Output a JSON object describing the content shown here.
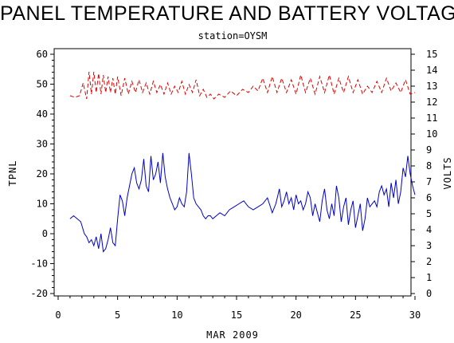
{
  "chart_data": {
    "type": "line",
    "title": "PANEL TEMPERATURE AND BATTERY VOLTAGE",
    "subtitle": "station=OYSM",
    "xlabel": "MAR 2009",
    "ylabel_left": "TPNL",
    "ylabel_right": "VOLTS",
    "xlim": [
      0,
      30
    ],
    "ylim_left": [
      -20,
      60
    ],
    "ylim_right": [
      0,
      15
    ],
    "x_ticks": [
      0,
      5,
      10,
      15,
      20,
      25,
      30
    ],
    "y_ticks_left": [
      -20,
      -10,
      0,
      10,
      20,
      30,
      40,
      50,
      60
    ],
    "y_ticks_right": [
      0,
      1,
      2,
      3,
      4,
      5,
      6,
      7,
      8,
      9,
      10,
      11,
      12,
      13,
      14,
      15
    ],
    "grid": false,
    "colors": {
      "panel_temperature": "#0000cc",
      "battery_voltage": "#dd0000"
    },
    "series": [
      {
        "axis": "left",
        "line_style": "solid",
        "x": [
          1.0,
          1.3,
          1.6,
          1.9,
          2.2,
          2.4,
          2.6,
          2.8,
          3.0,
          3.2,
          3.4,
          3.6,
          3.8,
          4.0,
          4.2,
          4.4,
          4.6,
          4.8,
          5.0,
          5.2,
          5.4,
          5.6,
          5.8,
          6.0,
          6.2,
          6.4,
          6.6,
          6.8,
          7.0,
          7.2,
          7.4,
          7.6,
          7.8,
          8.0,
          8.2,
          8.4,
          8.6,
          8.8,
          9.0,
          9.2,
          9.4,
          9.6,
          9.8,
          10.0,
          10.2,
          10.4,
          10.6,
          10.8,
          11.0,
          11.2,
          11.4,
          11.6,
          11.8,
          12.0,
          12.2,
          12.4,
          12.6,
          12.8,
          13.0,
          13.3,
          13.6,
          14.0,
          14.4,
          14.8,
          15.2,
          15.6,
          16.0,
          16.4,
          16.8,
          17.2,
          17.6,
          18.0,
          18.3,
          18.6,
          18.8,
          19.0,
          19.2,
          19.4,
          19.6,
          19.8,
          20.0,
          20.2,
          20.4,
          20.6,
          20.8,
          21.0,
          21.2,
          21.4,
          21.6,
          21.8,
          22.0,
          22.2,
          22.4,
          22.6,
          22.8,
          23.0,
          23.2,
          23.4,
          23.6,
          23.8,
          24.0,
          24.2,
          24.4,
          24.6,
          24.8,
          25.0,
          25.2,
          25.4,
          25.6,
          25.8,
          26.0,
          26.2,
          26.4,
          26.6,
          26.8,
          27.0,
          27.2,
          27.4,
          27.6,
          27.8,
          28.0,
          28.2,
          28.4,
          28.6,
          28.8,
          29.0,
          29.2,
          29.4,
          29.6,
          29.8,
          30.0
        ],
        "values": [
          5,
          6,
          5,
          4,
          0,
          -1,
          -3,
          -2,
          -4,
          -1,
          -5,
          0,
          -6,
          -5,
          -2,
          2,
          -3,
          -4,
          5,
          13,
          11,
          6,
          12,
          16,
          20,
          22,
          17,
          15,
          18,
          25,
          16,
          14,
          26,
          18,
          20,
          24,
          17,
          27,
          19,
          15,
          12,
          10,
          8,
          9,
          12,
          10,
          9,
          14,
          27,
          20,
          12,
          10,
          9,
          8,
          6,
          5,
          6,
          6,
          5,
          6,
          7,
          6,
          8,
          9,
          10,
          11,
          9,
          8,
          9,
          10,
          12,
          7,
          10,
          15,
          9,
          11,
          14,
          10,
          12,
          8,
          13,
          10,
          11,
          8,
          10,
          14,
          12,
          6,
          10,
          7,
          4,
          11,
          15,
          8,
          5,
          10,
          6,
          16,
          12,
          4,
          9,
          12,
          3,
          8,
          11,
          2,
          6,
          10,
          1,
          5,
          12,
          9,
          10,
          11,
          9,
          14,
          16,
          13,
          15,
          9,
          17,
          12,
          18,
          10,
          14,
          22,
          19,
          26,
          20,
          16,
          13
        ],
        "name": ""
      },
      {
        "axis": "right",
        "line_style": "dashed",
        "x": [
          1.0,
          1.4,
          1.8,
          2.1,
          2.4,
          2.6,
          2.8,
          3.0,
          3.2,
          3.4,
          3.6,
          3.8,
          4.0,
          4.2,
          4.4,
          4.6,
          4.8,
          5.0,
          5.3,
          5.6,
          5.9,
          6.2,
          6.5,
          6.8,
          7.1,
          7.4,
          7.7,
          8.0,
          8.3,
          8.6,
          8.9,
          9.2,
          9.5,
          9.8,
          10.1,
          10.4,
          10.7,
          11.0,
          11.3,
          11.6,
          11.9,
          12.2,
          12.5,
          12.8,
          13.1,
          13.5,
          14.0,
          14.5,
          15.0,
          15.5,
          16.0,
          16.4,
          16.8,
          17.2,
          17.6,
          18.0,
          18.4,
          18.8,
          19.2,
          19.6,
          20.0,
          20.4,
          20.8,
          21.2,
          21.6,
          22.0,
          22.4,
          22.8,
          23.2,
          23.6,
          24.0,
          24.4,
          24.8,
          25.2,
          25.6,
          26.0,
          26.4,
          26.8,
          27.2,
          27.6,
          28.0,
          28.4,
          28.8,
          29.2,
          29.6,
          30.0
        ],
        "values": [
          12.4,
          12.3,
          12.4,
          13.2,
          12.2,
          13.9,
          12.5,
          13.9,
          12.6,
          13.8,
          12.5,
          13.7,
          12.6,
          13.6,
          12.6,
          13.5,
          12.5,
          13.6,
          12.4,
          13.5,
          12.5,
          13.3,
          12.6,
          13.4,
          12.6,
          13.2,
          12.5,
          13.3,
          12.6,
          13.1,
          12.5,
          13.2,
          12.5,
          13.0,
          12.6,
          13.3,
          12.5,
          13.1,
          12.6,
          13.4,
          12.4,
          12.8,
          12.3,
          12.5,
          12.2,
          12.5,
          12.3,
          12.7,
          12.4,
          12.8,
          12.6,
          13.0,
          12.7,
          13.5,
          12.6,
          13.6,
          12.6,
          13.5,
          12.6,
          13.4,
          12.5,
          13.7,
          12.6,
          13.5,
          12.5,
          13.6,
          12.6,
          13.7,
          12.5,
          13.5,
          12.6,
          13.6,
          12.6,
          13.4,
          12.5,
          13.0,
          12.6,
          13.3,
          12.6,
          13.5,
          12.7,
          13.2,
          12.6,
          13.4,
          12.5,
          12.6
        ],
        "name": ""
      }
    ]
  }
}
